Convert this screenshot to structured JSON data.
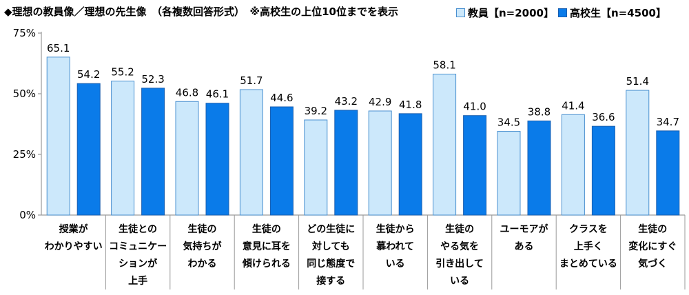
{
  "title": "◆理想の教員像／理想の先生像　（各複数回答形式）　※高校生の上位10位までを表示",
  "colors": {
    "teacher": "#cce8fb",
    "student": "#0a7be9",
    "teacher_border": "#4a90d0",
    "student_border": "#1a5fb0",
    "axis": "#9a9a9a"
  },
  "chart_data": {
    "type": "bar",
    "title": "◆理想の教員像／理想の先生像　（各複数回答形式）　※高校生の上位10位までを表示",
    "categories": [
      [
        "授業が",
        "わかりやすい"
      ],
      [
        "生徒との",
        "コミュニケー",
        "ションが",
        "上手"
      ],
      [
        "生徒の",
        "気持ちが",
        "わかる"
      ],
      [
        "生徒の",
        "意見に耳を",
        "傾けられる"
      ],
      [
        "どの生徒に",
        "対しても",
        "同じ態度で",
        "接する"
      ],
      [
        "生徒から",
        "慕われて",
        "いる"
      ],
      [
        "生徒の",
        "やる気を",
        "引き出して",
        "いる"
      ],
      [
        "ユーモアが",
        "ある"
      ],
      [
        "クラスを",
        "上手く",
        "まとめている"
      ],
      [
        "生徒の",
        "変化にすぐ",
        "気づく"
      ]
    ],
    "series": [
      {
        "name": "教員【n=2000】",
        "values": [
          65.1,
          55.2,
          46.8,
          51.7,
          39.2,
          42.9,
          58.1,
          34.5,
          41.4,
          51.4
        ]
      },
      {
        "name": "高校生【n=4500】",
        "values": [
          54.2,
          52.3,
          46.1,
          44.6,
          43.2,
          41.8,
          41.0,
          38.8,
          36.6,
          34.7
        ]
      }
    ],
    "yticks": [
      "0%",
      "25%",
      "50%",
      "75%"
    ],
    "ylim": [
      0,
      75
    ],
    "legend_position": "top-right",
    "grid": false
  }
}
